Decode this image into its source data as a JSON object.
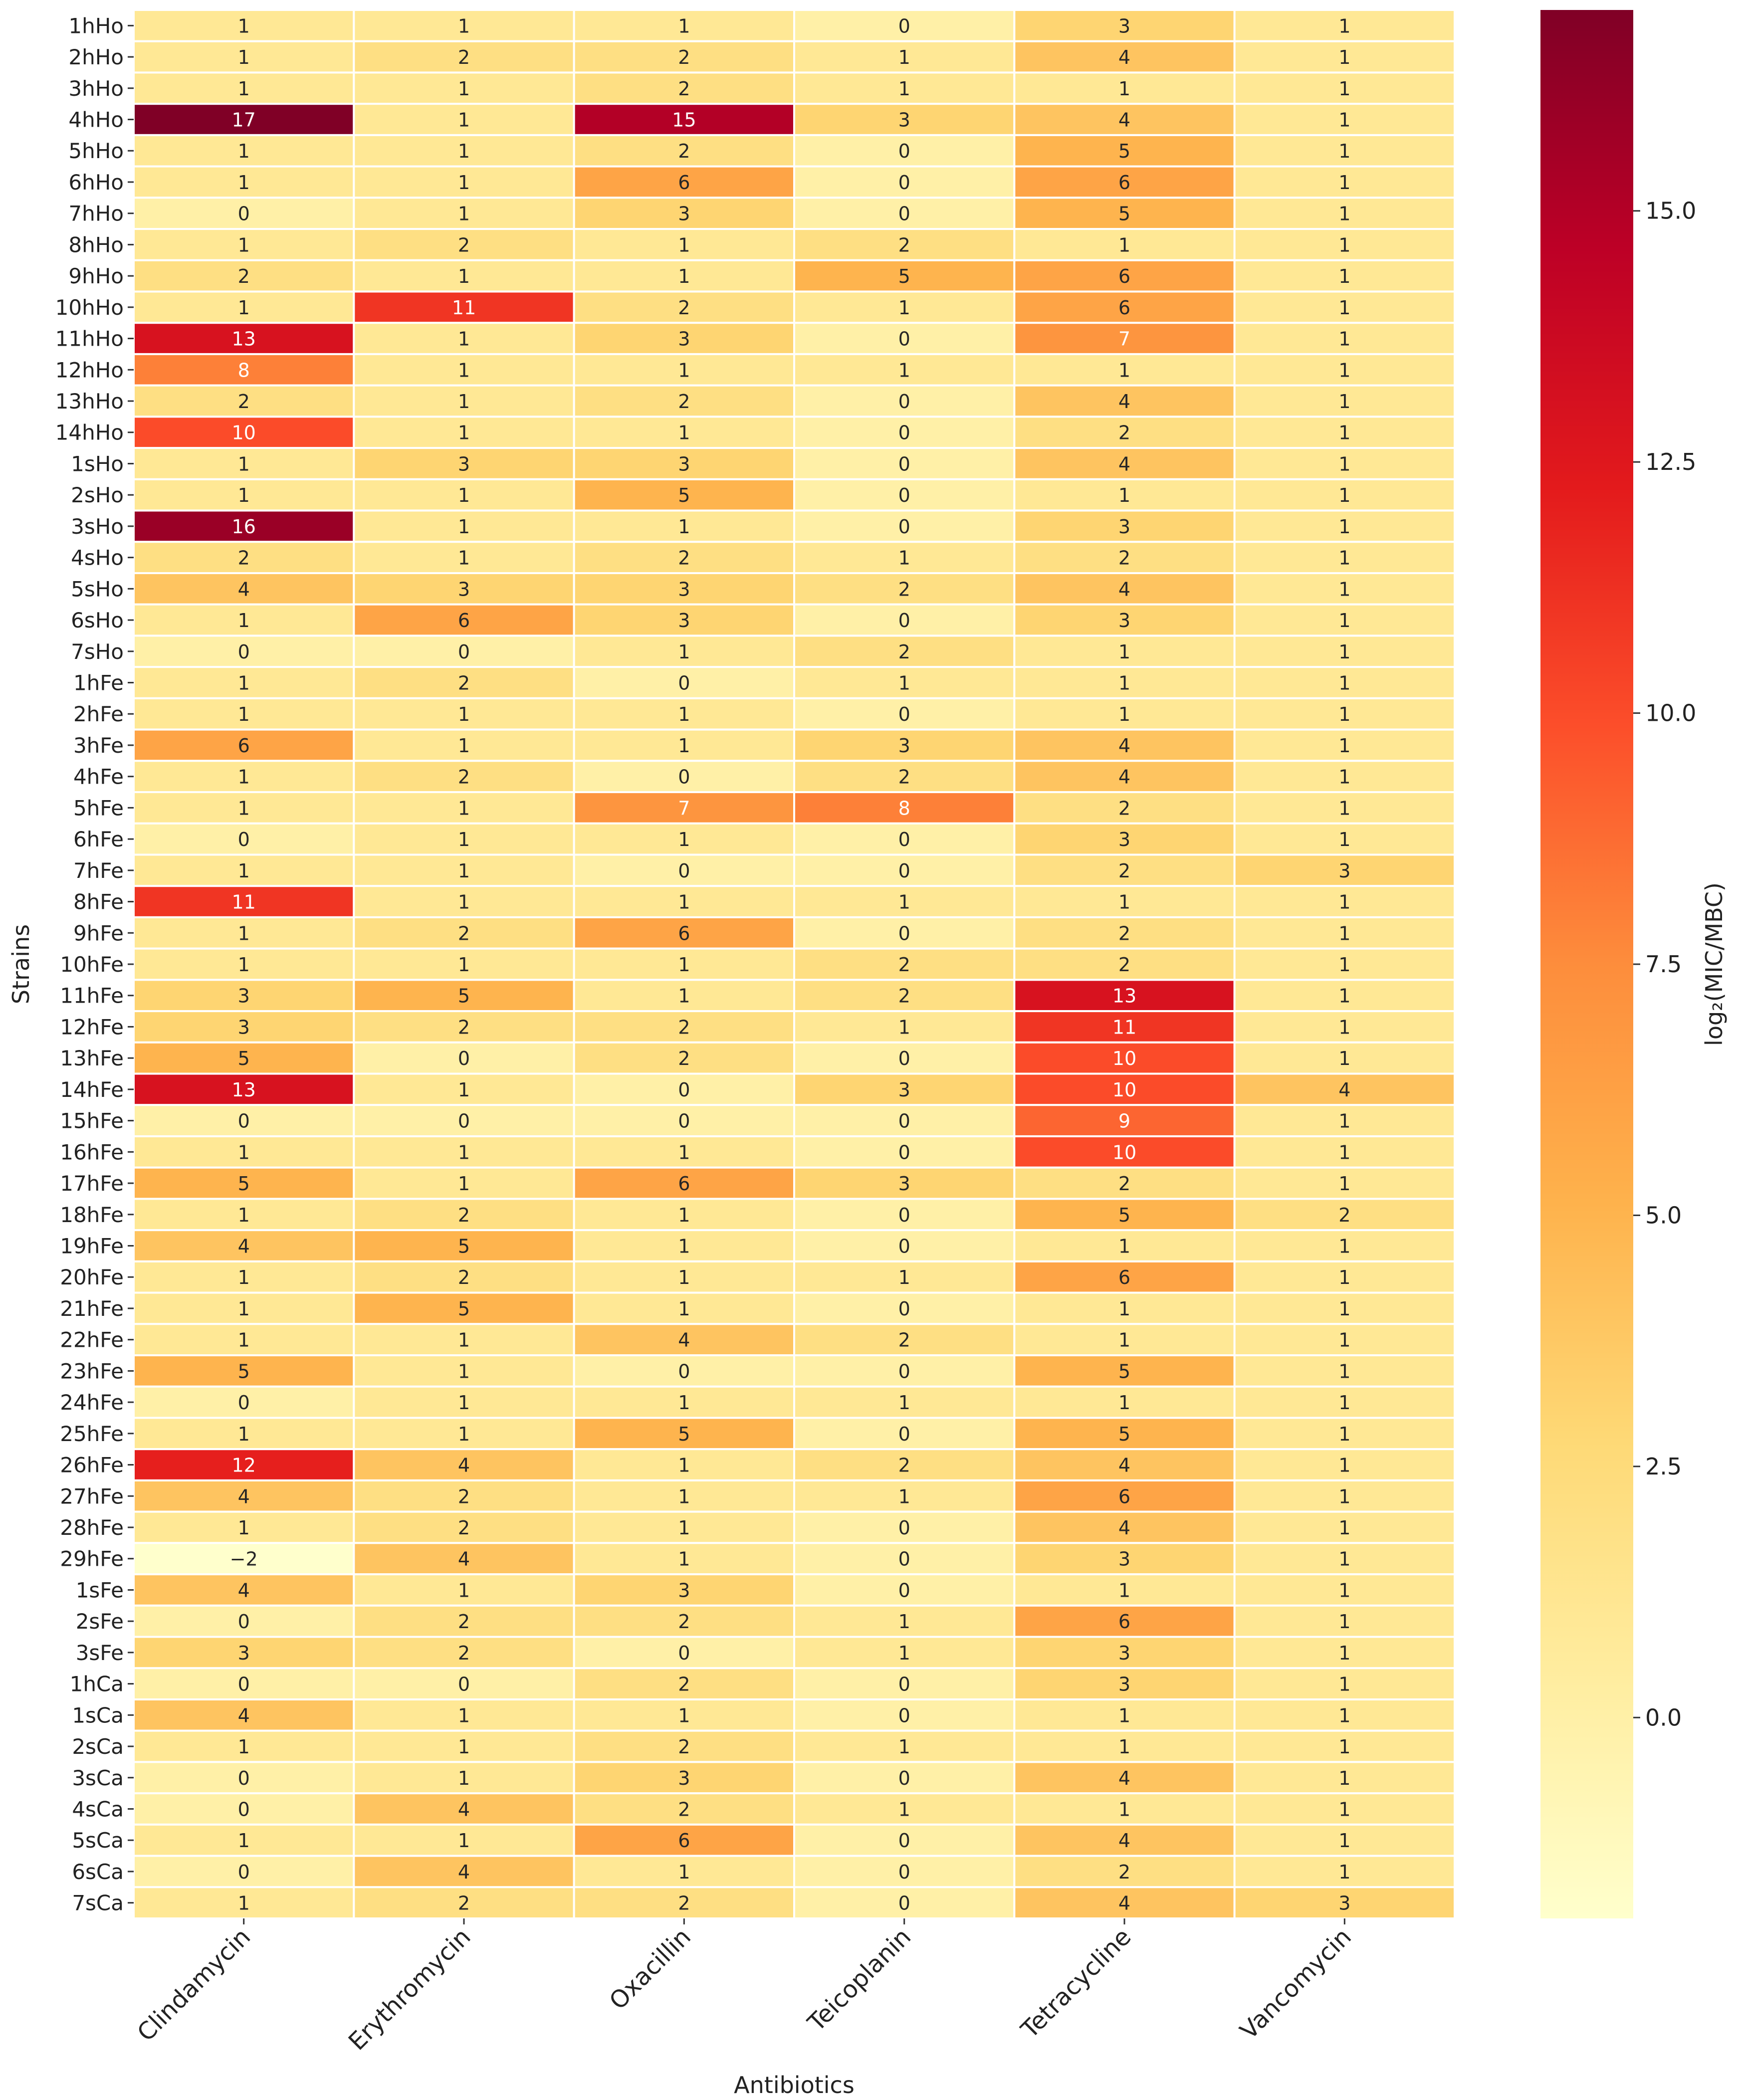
{
  "chart_data": {
    "type": "heatmap",
    "xlabel": "Antibiotics",
    "ylabel": "Strains",
    "colorbar_label": "log₂(MIC/MBC)",
    "colorbar_range": [
      -2,
      17
    ],
    "colorbar_ticks": [
      "0.0",
      "2.5",
      "5.0",
      "7.5",
      "10.0",
      "12.5",
      "15.0"
    ],
    "colormap": "YlOrRd",
    "columns": [
      "Clindamycin",
      "Erythromycin",
      "Oxacillin",
      "Teicoplanin",
      "Tetracycline",
      "Vancomycin"
    ],
    "rows": [
      "1hHo",
      "2hHo",
      "3hHo",
      "4hHo",
      "5hHo",
      "6hHo",
      "7hHo",
      "8hHo",
      "9hHo",
      "10hHo",
      "11hHo",
      "12hHo",
      "13hHo",
      "14hHo",
      "1sHo",
      "2sHo",
      "3sHo",
      "4sHo",
      "5sHo",
      "6sHo",
      "7sHo",
      "1hFe",
      "2hFe",
      "3hFe",
      "4hFe",
      "5hFe",
      "6hFe",
      "7hFe",
      "8hFe",
      "9hFe",
      "10hFe",
      "11hFe",
      "12hFe",
      "13hFe",
      "14hFe",
      "15hFe",
      "16hFe",
      "17hFe",
      "18hFe",
      "19hFe",
      "20hFe",
      "21hFe",
      "22hFe",
      "23hFe",
      "24hFe",
      "25hFe",
      "26hFe",
      "27hFe",
      "28hFe",
      "29hFe",
      "1sFe",
      "2sFe",
      "3sFe",
      "1hCa",
      "1sCa",
      "2sCa",
      "3sCa",
      "4sCa",
      "5sCa",
      "6sCa",
      "7sCa"
    ],
    "values": [
      [
        1,
        1,
        1,
        0,
        3,
        1
      ],
      [
        1,
        2,
        2,
        1,
        4,
        1
      ],
      [
        1,
        1,
        2,
        1,
        1,
        1
      ],
      [
        17,
        1,
        15,
        3,
        4,
        1
      ],
      [
        1,
        1,
        2,
        0,
        5,
        1
      ],
      [
        1,
        1,
        6,
        0,
        6,
        1
      ],
      [
        0,
        1,
        3,
        0,
        5,
        1
      ],
      [
        1,
        2,
        1,
        2,
        1,
        1
      ],
      [
        2,
        1,
        1,
        5,
        6,
        1
      ],
      [
        1,
        11,
        2,
        1,
        6,
        1
      ],
      [
        13,
        1,
        3,
        0,
        7,
        1
      ],
      [
        8,
        1,
        1,
        1,
        1,
        1
      ],
      [
        2,
        1,
        2,
        0,
        4,
        1
      ],
      [
        10,
        1,
        1,
        0,
        2,
        1
      ],
      [
        1,
        3,
        3,
        0,
        4,
        1
      ],
      [
        1,
        1,
        5,
        0,
        1,
        1
      ],
      [
        16,
        1,
        1,
        0,
        3,
        1
      ],
      [
        2,
        1,
        2,
        1,
        2,
        1
      ],
      [
        4,
        3,
        3,
        2,
        4,
        1
      ],
      [
        1,
        6,
        3,
        0,
        3,
        1
      ],
      [
        0,
        0,
        1,
        2,
        1,
        1
      ],
      [
        1,
        2,
        0,
        1,
        1,
        1
      ],
      [
        1,
        1,
        1,
        0,
        1,
        1
      ],
      [
        6,
        1,
        1,
        3,
        4,
        1
      ],
      [
        1,
        2,
        0,
        2,
        4,
        1
      ],
      [
        1,
        1,
        7,
        8,
        2,
        1
      ],
      [
        0,
        1,
        1,
        0,
        3,
        1
      ],
      [
        1,
        1,
        0,
        0,
        2,
        3
      ],
      [
        11,
        1,
        1,
        1,
        1,
        1
      ],
      [
        1,
        2,
        6,
        0,
        2,
        1
      ],
      [
        1,
        1,
        1,
        2,
        2,
        1
      ],
      [
        3,
        5,
        1,
        2,
        13,
        1
      ],
      [
        3,
        2,
        2,
        1,
        11,
        1
      ],
      [
        5,
        0,
        2,
        0,
        10,
        1
      ],
      [
        13,
        1,
        0,
        3,
        10,
        4
      ],
      [
        0,
        0,
        0,
        0,
        9,
        1
      ],
      [
        1,
        1,
        1,
        0,
        10,
        1
      ],
      [
        5,
        1,
        6,
        3,
        2,
        1
      ],
      [
        1,
        2,
        1,
        0,
        5,
        2
      ],
      [
        4,
        5,
        1,
        0,
        1,
        1
      ],
      [
        1,
        2,
        1,
        1,
        6,
        1
      ],
      [
        1,
        5,
        1,
        0,
        1,
        1
      ],
      [
        1,
        1,
        4,
        2,
        1,
        1
      ],
      [
        5,
        1,
        0,
        0,
        5,
        1
      ],
      [
        0,
        1,
        1,
        1,
        1,
        1
      ],
      [
        1,
        1,
        5,
        0,
        5,
        1
      ],
      [
        12,
        4,
        1,
        2,
        4,
        1
      ],
      [
        4,
        2,
        1,
        1,
        6,
        1
      ],
      [
        1,
        2,
        1,
        0,
        4,
        1
      ],
      [
        -2,
        4,
        1,
        0,
        3,
        1
      ],
      [
        4,
        1,
        3,
        0,
        1,
        1
      ],
      [
        0,
        2,
        2,
        1,
        6,
        1
      ],
      [
        3,
        2,
        0,
        1,
        3,
        1
      ],
      [
        0,
        0,
        2,
        0,
        3,
        1
      ],
      [
        4,
        1,
        1,
        0,
        1,
        1
      ],
      [
        1,
        1,
        2,
        1,
        1,
        1
      ],
      [
        0,
        1,
        3,
        0,
        4,
        1
      ],
      [
        0,
        4,
        2,
        1,
        1,
        1
      ],
      [
        1,
        1,
        6,
        0,
        4,
        1
      ],
      [
        0,
        4,
        1,
        0,
        2,
        1
      ],
      [
        1,
        2,
        2,
        0,
        4,
        3
      ]
    ]
  }
}
